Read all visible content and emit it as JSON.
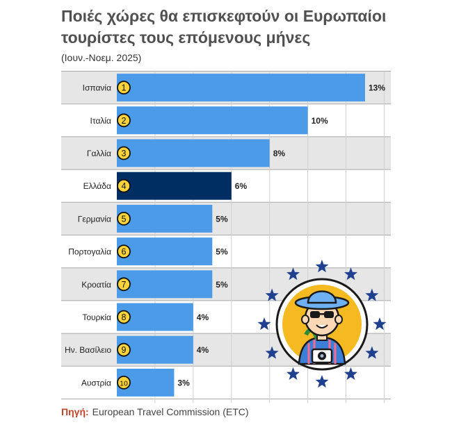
{
  "title": "Ποιές χώρες θα επισκεφτούν οι Ευρωπαίοι τουρίστες τους επόμενους μήνες",
  "subtitle": "(Ιουν.-Νοεμ. 2025)",
  "source": {
    "label": "Πηγή:",
    "text": "European Travel Commission (ETC)"
  },
  "colors": {
    "bar": "#4c9be8",
    "highlight": "#002d62",
    "rank_fill": "#ffd43b",
    "band": "#e6e6e6",
    "grid": "#d0d0d0"
  },
  "illustration": {
    "icon": "eu-stars-tourist-icon"
  },
  "chart_data": {
    "type": "bar",
    "orientation": "horizontal",
    "title": "Ποιές χώρες θα επισκεφτούν οι Ευρωπαίοι τουρίστες τους επόμενους μήνες",
    "subtitle": "(Ιουν.-Νοεμ. 2025)",
    "categories": [
      "Ισπανία",
      "Ιταλία",
      "Γαλλία",
      "Ελλάδα",
      "Γερμανία",
      "Πορτογαλία",
      "Κροατία",
      "Τουρκία",
      "Ην. Βασίλειο",
      "Αυστρία"
    ],
    "ranks": [
      "1",
      "2",
      "3",
      "4",
      "5",
      "6",
      "7",
      "8",
      "9",
      "10"
    ],
    "values": [
      13,
      10,
      8,
      6,
      5,
      5,
      5,
      4,
      4,
      3
    ],
    "value_labels": [
      "13%",
      "10%",
      "8%",
      "6%",
      "5%",
      "5%",
      "5%",
      "4%",
      "4%",
      "3%"
    ],
    "highlight_category": "Ελλάδα",
    "xlim": [
      0,
      14
    ],
    "grid": true
  }
}
